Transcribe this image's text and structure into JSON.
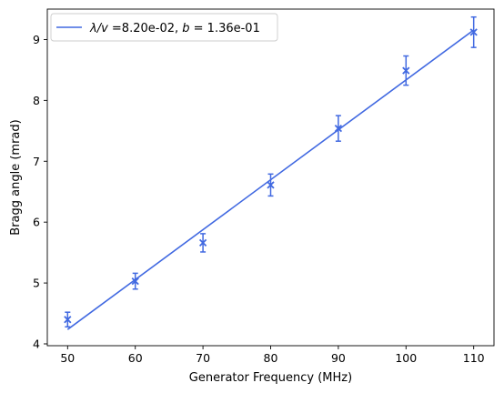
{
  "chart_data": {
    "type": "scatter",
    "xlabel": "Generator Frequency (MHz)",
    "ylabel": "Bragg angle (mrad)",
    "xlim": [
      47,
      113
    ],
    "ylim": [
      3.97,
      9.5
    ],
    "grid": false,
    "legend_placement": "top-left",
    "x_ticks": [
      50,
      60,
      70,
      80,
      90,
      100,
      110
    ],
    "y_ticks": [
      4,
      5,
      6,
      7,
      8,
      9
    ],
    "series": [
      {
        "kind": "errorbar",
        "marker": "x",
        "color": "#4169e1",
        "points": [
          {
            "x": 50,
            "y": 4.4,
            "err": 0.12
          },
          {
            "x": 60,
            "y": 5.03,
            "err": 0.13
          },
          {
            "x": 70,
            "y": 5.66,
            "err": 0.15
          },
          {
            "x": 80,
            "y": 6.61,
            "err": 0.18
          },
          {
            "x": 90,
            "y": 7.54,
            "err": 0.21
          },
          {
            "x": 100,
            "y": 8.49,
            "err": 0.24
          },
          {
            "x": 110,
            "y": 9.12,
            "err": 0.25
          }
        ]
      },
      {
        "kind": "fit-line",
        "color": "#4169e1",
        "slope": 0.082,
        "intercept": 0.136,
        "x_range": [
          50,
          110
        ],
        "legend": {
          "lambda_v": "λ/v",
          "lambda_v_value": " =8.20e-02, ",
          "b": "b",
          "b_value": " = 1.36e-01"
        }
      }
    ]
  }
}
